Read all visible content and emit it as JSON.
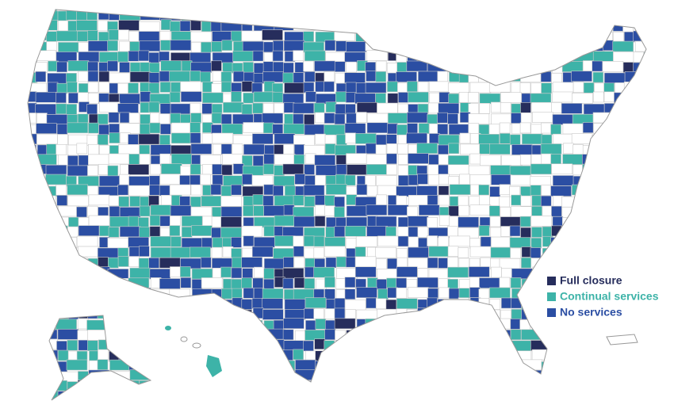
{
  "legend": {
    "items": [
      {
        "label": "Full closure",
        "color": "#262d5c"
      },
      {
        "label": "Continual services",
        "color": "#3db3a8"
      },
      {
        "label": "No services",
        "color": "#2b4ea3"
      }
    ]
  }
}
